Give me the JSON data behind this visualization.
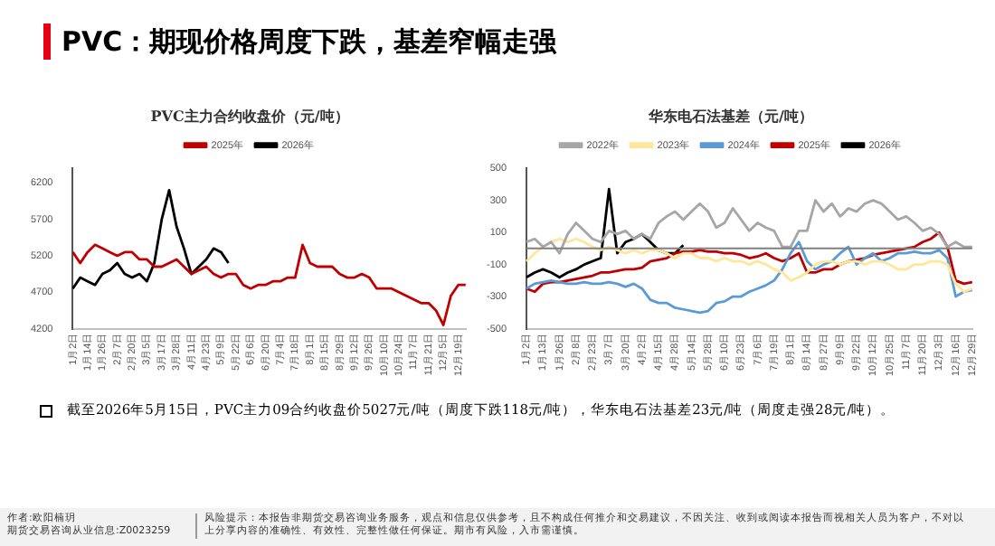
{
  "chart_data": [
    {
      "type": "line",
      "title": "PVC主力合约收盘价（元/吨）",
      "legend": "top",
      "marker": "none",
      "annotations": [
        "PVC：期现价格周度下跌，基差窄幅走强",
        "截至2026年5月15日，PVC主力09合约收盘价5027元/吨（周度下跌118元/吨），华东电石法基差23元/吨（周度走强28元/吨）。",
        "作者:欧阳楠玥",
        "期货交易咨询从业信息:Z0023259",
        "风险提示：本报告非期货交易咨询业务服务，观点和信息仅供参考，且不构成任何推介和交易建议，不因关注、收到或阅读本报告而视相关人员为客户，不对以上分享内容的准确性、有效性、完整性做任何保证。期市有风险，入市需谨慎。"
      ],
      "categories": [
        "1月2日",
        null,
        "1月14日",
        null,
        "1月26日",
        null,
        "2月7日",
        null,
        "2月20日",
        null,
        "3月5日",
        null,
        "3月17日",
        null,
        "3月28日",
        null,
        "4月11日",
        null,
        "4月23日",
        null,
        "5月9日",
        null,
        "5月22日",
        null,
        "6月6日",
        null,
        "6月20日",
        null,
        "7月4日",
        null,
        "7月18日",
        null,
        "8月1日",
        null,
        "8月15日",
        null,
        "8月29日",
        null,
        "9月12日",
        null,
        "9月26日",
        null,
        "10月10日",
        null,
        "10月24日",
        null,
        "11月7日",
        null,
        "11月21日",
        null,
        "12月5日",
        null,
        "12月19日",
        null
      ],
      "ylim": [
        4200,
        6400
      ],
      "yticks": [
        4200,
        4700,
        5200,
        5700,
        6200
      ],
      "series": [
        {
          "name": "2025年",
          "color": "#c00000",
          "values": [
            5250,
            5100,
            5250,
            5350,
            5300,
            5250,
            5200,
            5250,
            5250,
            5150,
            5150,
            5050,
            5050,
            5100,
            5150,
            5050,
            4950,
            5000,
            5050,
            4950,
            4900,
            4950,
            4950,
            4800,
            4750,
            4800,
            4800,
            4850,
            4850,
            4900,
            4900,
            5350,
            5100,
            5050,
            5050,
            5050,
            4950,
            4900,
            4900,
            4950,
            4900,
            4750,
            4750,
            4750,
            4700,
            4650,
            4600,
            4550,
            4550,
            4450,
            4250,
            4650,
            4800,
            4800
          ]
        },
        {
          "name": "2026年",
          "color": "#000000",
          "values": [
            4750,
            4900,
            4850,
            4800,
            4950,
            5000,
            5100,
            4950,
            4900,
            4950,
            4850,
            5100,
            5700,
            6100,
            5600,
            5300,
            4950,
            5050,
            5150,
            5300,
            5250,
            5100,
            null,
            null,
            null,
            null,
            null,
            null,
            null,
            null,
            null,
            null,
            null,
            null,
            null,
            null,
            null,
            null,
            null,
            null,
            null,
            null,
            null,
            null,
            null,
            null,
            null,
            null,
            null,
            null,
            null,
            null,
            null,
            null
          ]
        }
      ]
    },
    {
      "type": "line",
      "title": "华东电石法基差（元/吨）",
      "legend": "top",
      "marker": "none",
      "categories": [
        "1月2日",
        null,
        "1月13日",
        null,
        "1月26日",
        null,
        "2月8日",
        null,
        "2月23日",
        null,
        "3月7日",
        null,
        "3月20日",
        null,
        "4月2日",
        null,
        "4月15日",
        null,
        "4月28日",
        null,
        "5月14日",
        null,
        "5月28日",
        null,
        "6月10日",
        null,
        "6月23日",
        null,
        "7月6日",
        null,
        "7月19日",
        null,
        "8月1日",
        null,
        "8月14日",
        null,
        "8月27日",
        null,
        "9月9日",
        null,
        "9月22日",
        null,
        "10月12日",
        null,
        "10月25日",
        null,
        "11月7日",
        null,
        "11月20日",
        null,
        "12月3日",
        null,
        "12月16日",
        null,
        "12月29日"
      ],
      "ylim": [
        -500,
        500
      ],
      "yticks": [
        -500,
        -300,
        -100,
        100,
        300,
        500
      ],
      "ref_lines": [
        {
          "axis": "y",
          "value": 0,
          "color": "#7f7f7f"
        }
      ],
      "series": [
        {
          "name": "2022年",
          "color": "#a6a6a6",
          "values": [
            40,
            60,
            10,
            40,
            -30,
            90,
            160,
            110,
            60,
            40,
            110,
            90,
            110,
            60,
            90,
            60,
            160,
            200,
            230,
            180,
            230,
            280,
            230,
            130,
            160,
            250,
            180,
            110,
            160,
            130,
            110,
            10,
            10,
            110,
            110,
            300,
            230,
            280,
            200,
            250,
            230,
            280,
            300,
            280,
            230,
            180,
            200,
            160,
            110,
            130,
            90,
            10,
            40,
            10,
            10
          ]
        },
        {
          "name": "2023年",
          "color": "#ffe699",
          "values": [
            -80,
            -30,
            10,
            40,
            60,
            40,
            60,
            40,
            10,
            -10,
            10,
            -10,
            -30,
            -10,
            -30,
            -10,
            -10,
            -30,
            -60,
            -30,
            -30,
            -60,
            -60,
            -80,
            -60,
            -80,
            -80,
            -100,
            -80,
            -100,
            -130,
            -150,
            -200,
            -180,
            -150,
            -100,
            -80,
            -80,
            -100,
            -80,
            -80,
            -100,
            -80,
            -80,
            -100,
            -130,
            -130,
            -100,
            -100,
            -80,
            -80,
            -100,
            -220,
            -270,
            -250
          ]
        },
        {
          "name": "2024年",
          "color": "#5b9bd5",
          "values": [
            -250,
            -220,
            -210,
            -200,
            -210,
            -220,
            -220,
            -210,
            -220,
            -220,
            -210,
            -220,
            -240,
            -220,
            -250,
            -320,
            -340,
            -340,
            -370,
            -380,
            -390,
            -400,
            -390,
            -340,
            -330,
            -300,
            -300,
            -270,
            -250,
            -230,
            -200,
            -130,
            -30,
            40,
            -80,
            -130,
            -100,
            -80,
            -30,
            10,
            -100,
            -60,
            -30,
            -80,
            -60,
            -30,
            -30,
            -20,
            -30,
            -30,
            -10,
            -60,
            -300,
            -270,
            -260
          ]
        },
        {
          "name": "2025年",
          "color": "#c00000",
          "values": [
            -250,
            -270,
            -220,
            -210,
            -210,
            -200,
            -190,
            -180,
            -170,
            -150,
            -150,
            -140,
            -130,
            -130,
            -120,
            -80,
            -70,
            -60,
            -30,
            -20,
            -20,
            -10,
            -20,
            -20,
            -30,
            -30,
            -40,
            -60,
            -50,
            -30,
            -60,
            -80,
            -60,
            -30,
            -150,
            -150,
            -130,
            -130,
            -100,
            -80,
            -70,
            -60,
            -40,
            -30,
            -20,
            -10,
            0,
            10,
            40,
            60,
            100,
            10,
            -200,
            -220,
            -210
          ]
        },
        {
          "name": "2026年",
          "color": "#000000",
          "values": [
            -180,
            -150,
            -130,
            -150,
            -180,
            -150,
            -130,
            -100,
            -80,
            -60,
            370,
            -30,
            40,
            60,
            90,
            40,
            -10,
            -30,
            -30,
            20,
            null,
            null,
            null,
            null,
            null,
            null,
            null,
            null,
            null,
            null,
            null,
            null,
            null,
            null,
            null,
            null,
            null,
            null,
            null,
            null,
            null,
            null,
            null,
            null,
            null,
            null,
            null,
            null,
            null,
            null,
            null,
            null,
            null,
            null,
            null
          ]
        }
      ]
    }
  ]
}
